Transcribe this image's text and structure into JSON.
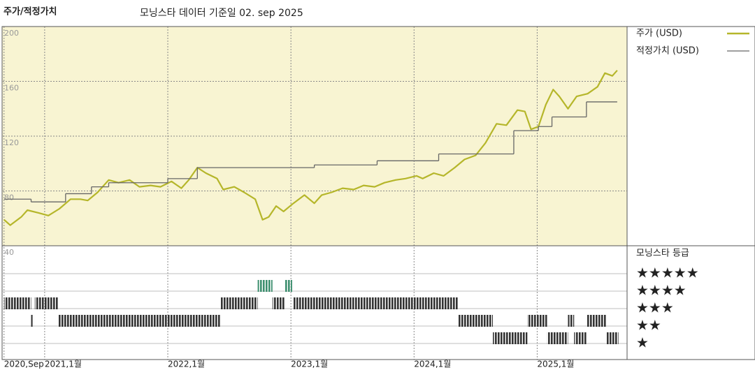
{
  "title": "주가/적정가치",
  "subtitle": "모닝스타 데이터 기준일 02. sep 2025",
  "chart_data": {
    "type": "line",
    "xlim": [
      2020.66,
      2025.73
    ],
    "xticks": [
      {
        "value": 2020.67,
        "label": "2020,Sep"
      },
      {
        "value": 2021,
        "label": "2021,1월"
      },
      {
        "value": 2022,
        "label": "2022,1월"
      },
      {
        "value": 2023,
        "label": "2023,1월"
      },
      {
        "value": 2024,
        "label": "2024,1월"
      },
      {
        "value": 2025,
        "label": "2025,1월"
      }
    ],
    "ylim": [
      40,
      200
    ],
    "yticks": [
      40,
      80,
      120,
      160,
      200
    ],
    "grid": true,
    "series": [
      {
        "name": "주가 (USD)",
        "color": "#b5b62a",
        "x": [
          2020.67,
          2020.72,
          2020.81,
          2020.86,
          2020.95,
          2021.03,
          2021.12,
          2021.21,
          2021.29,
          2021.35,
          2021.43,
          2021.52,
          2021.6,
          2021.69,
          2021.77,
          2021.86,
          2021.94,
          2022.03,
          2022.11,
          2022.17,
          2022.24,
          2022.31,
          2022.4,
          2022.45,
          2022.54,
          2022.62,
          2022.71,
          2022.77,
          2022.82,
          2022.88,
          2022.94,
          2023.02,
          2023.11,
          2023.19,
          2023.25,
          2023.33,
          2023.42,
          2023.51,
          2023.59,
          2023.68,
          2023.76,
          2023.85,
          2023.93,
          2024.02,
          2024.07,
          2024.16,
          2024.24,
          2024.33,
          2024.41,
          2024.5,
          2024.58,
          2024.67,
          2024.75,
          2024.84,
          2024.9,
          2024.95,
          2025.01,
          2025.07,
          2025.13,
          2025.18,
          2025.25,
          2025.32,
          2025.41,
          2025.49,
          2025.55,
          2025.61,
          2025.65
        ],
        "values": [
          59,
          55,
          61,
          66,
          64,
          62,
          67,
          74,
          74,
          73,
          79,
          88,
          86,
          88,
          83,
          84,
          83,
          87,
          82,
          88,
          97,
          93,
          89,
          81,
          83,
          79,
          74,
          59,
          61,
          69,
          65,
          71,
          77,
          71,
          77,
          79,
          82,
          81,
          84,
          83,
          86,
          88,
          89,
          91,
          89,
          93,
          91,
          97,
          103,
          106,
          115,
          129,
          128,
          139,
          138,
          125,
          127,
          143,
          154,
          149,
          140,
          149,
          151,
          156,
          166,
          164,
          168
        ]
      },
      {
        "name": "적정가치 (USD)",
        "color": "#666666",
        "step": "post",
        "x": [
          2020.67,
          2020.89,
          2021.17,
          2021.38,
          2021.52,
          2022.0,
          2022.24,
          2023.19,
          2023.7,
          2024.2,
          2024.81,
          2025.01,
          2025.12,
          2025.4,
          2025.65
        ],
        "values": [
          74,
          72,
          78,
          83,
          86,
          89,
          97,
          99,
          102,
          107,
          124,
          127,
          134,
          145,
          145
        ]
      }
    ],
    "ratings": {
      "title": "모닝스타 등급",
      "levels": [
        {
          "value": 5,
          "label": "★★★★★",
          "color": "#3d8f6f"
        },
        {
          "value": 4,
          "label": "★★★★",
          "color": "#333333"
        },
        {
          "value": 3,
          "label": "★★★",
          "color": "#333333"
        },
        {
          "value": 2,
          "label": "★★",
          "color": "#333333"
        },
        {
          "value": 1,
          "label": "★",
          "color": "#333333"
        }
      ],
      "segments": [
        {
          "start": 2020.67,
          "end": 2020.89,
          "rating": 4
        },
        {
          "start": 2020.89,
          "end": 2020.91,
          "rating": 3
        },
        {
          "start": 2020.92,
          "end": 2021.11,
          "rating": 4
        },
        {
          "start": 2021.11,
          "end": 2022.43,
          "rating": 3
        },
        {
          "start": 2022.43,
          "end": 2022.73,
          "rating": 4
        },
        {
          "start": 2022.73,
          "end": 2022.85,
          "rating": 5
        },
        {
          "start": 2022.85,
          "end": 2022.95,
          "rating": 4
        },
        {
          "start": 2022.95,
          "end": 2023.01,
          "rating": 5
        },
        {
          "start": 2023.02,
          "end": 2024.36,
          "rating": 4
        },
        {
          "start": 2024.36,
          "end": 2024.64,
          "rating": 3
        },
        {
          "start": 2024.64,
          "end": 2024.92,
          "rating": 2
        },
        {
          "start": 2024.92,
          "end": 2025.08,
          "rating": 3
        },
        {
          "start": 2025.08,
          "end": 2025.25,
          "rating": 2
        },
        {
          "start": 2025.25,
          "end": 2025.3,
          "rating": 3
        },
        {
          "start": 2025.3,
          "end": 2025.4,
          "rating": 2
        },
        {
          "start": 2025.4,
          "end": 2025.56,
          "rating": 3
        },
        {
          "start": 2025.56,
          "end": 2025.66,
          "rating": 2
        }
      ]
    }
  }
}
